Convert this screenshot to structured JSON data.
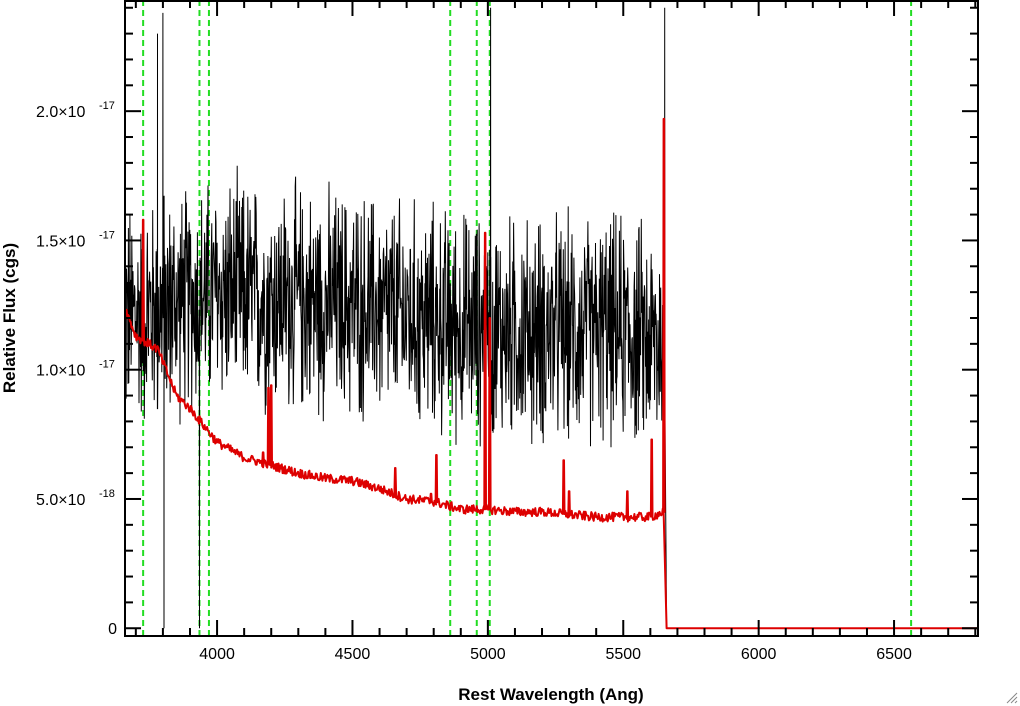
{
  "chart_data": {
    "type": "line",
    "xlabel": "Rest Wavelength (Ang)",
    "ylabel": "Relative Flux (cgs)",
    "xlim": [
      3660,
      6810
    ],
    "ylim": [
      -3e-19,
      2.43e-17
    ],
    "x_ticks": [
      {
        "value": 4000,
        "label": "4000"
      },
      {
        "value": 4500,
        "label": "4500"
      },
      {
        "value": 5000,
        "label": "5000"
      },
      {
        "value": 5500,
        "label": "5500"
      },
      {
        "value": 6000,
        "label": "6000"
      },
      {
        "value": 6500,
        "label": "6500"
      }
    ],
    "y_ticks": [
      {
        "value": 0,
        "mantissa": "0",
        "exponent": ""
      },
      {
        "value": 5e-18,
        "mantissa": "5.0×10",
        "exponent": "-18"
      },
      {
        "value": 1e-17,
        "mantissa": "1.0×10",
        "exponent": "-17"
      },
      {
        "value": 1.5e-17,
        "mantissa": "1.5×10",
        "exponent": "-17"
      },
      {
        "value": 2e-17,
        "mantissa": "2.0×10",
        "exponent": "-17"
      }
    ],
    "minor_x_step": 100,
    "minor_y_step": 1e-18,
    "grid": false,
    "legend": "none",
    "reference_lines": {
      "style": "dashed",
      "color": "#22dd22",
      "x": [
        3727,
        3935,
        3970,
        4861,
        4959,
        5007,
        6563
      ]
    },
    "series": [
      {
        "role": "observed",
        "color": "#000000",
        "style": "noisy",
        "x_range": [
          3660,
          5653
        ],
        "baseline": [
          [
            3660,
            1.2e-17
          ],
          [
            4000,
            1.3e-17
          ],
          [
            4500,
            1.25e-17
          ],
          [
            5000,
            1.15e-17
          ],
          [
            5500,
            1.15e-17
          ],
          [
            5653,
            1.1e-17
          ]
        ],
        "noise_amplitude": 4e-18,
        "spikes": [
          {
            "x": 3780,
            "y": 2.3e-17
          },
          {
            "x": 3800,
            "y": 2.38e-17
          },
          {
            "x": 3804,
            "y": 0
          },
          {
            "x": 3935,
            "y": 0
          },
          {
            "x": 5010,
            "y": 2.4e-17
          },
          {
            "x": 5653,
            "y": 2.4e-17
          }
        ],
        "after": [
          [
            5660,
            0
          ],
          [
            6810,
            0
          ]
        ]
      },
      {
        "role": "model",
        "color": "#dd0000",
        "style": "smooth",
        "points": [
          [
            3660,
            1.24e-17
          ],
          [
            3700,
            1.13e-17
          ],
          [
            3780,
            1.08e-17
          ],
          [
            3850,
            9e-18
          ],
          [
            3900,
            8.5e-18
          ],
          [
            4000,
            7.2e-18
          ],
          [
            4100,
            6.6e-18
          ],
          [
            4200,
            6.3e-18
          ],
          [
            4300,
            6e-18
          ],
          [
            4400,
            5.8e-18
          ],
          [
            4500,
            5.7e-18
          ],
          [
            4600,
            5.4e-18
          ],
          [
            4700,
            5e-18
          ],
          [
            4800,
            4.9e-18
          ],
          [
            4900,
            4.6e-18
          ],
          [
            5000,
            4.6e-18
          ],
          [
            5100,
            4.5e-18
          ],
          [
            5200,
            4.5e-18
          ],
          [
            5300,
            4.4e-18
          ],
          [
            5400,
            4.3e-18
          ],
          [
            5500,
            4.3e-18
          ],
          [
            5600,
            4.3e-18
          ],
          [
            5650,
            4.5e-18
          ]
        ],
        "emission_lines": [
          {
            "x": 3727,
            "y": 1.58e-17
          },
          {
            "x": 4170,
            "y": 6.8e-18
          },
          {
            "x": 4190,
            "y": 9.3e-18
          },
          {
            "x": 4200,
            "y": 9.4e-18
          },
          {
            "x": 4658,
            "y": 6.2e-18
          },
          {
            "x": 4790,
            "y": 5.2e-18
          },
          {
            "x": 4810,
            "y": 6.7e-18
          },
          {
            "x": 4990,
            "y": 1.53e-17
          },
          {
            "x": 5007,
            "y": 1.2e-17
          },
          {
            "x": 5280,
            "y": 6.5e-18
          },
          {
            "x": 5300,
            "y": 5.3e-18
          },
          {
            "x": 5515,
            "y": 5.3e-18
          },
          {
            "x": 5605,
            "y": 7.3e-18
          },
          {
            "x": 5650,
            "y": 1.97e-17
          }
        ],
        "after": [
          [
            5660,
            0
          ],
          [
            6810,
            0
          ]
        ]
      }
    ]
  },
  "icons": {
    "resize_grip": "resize-grip-icon"
  }
}
